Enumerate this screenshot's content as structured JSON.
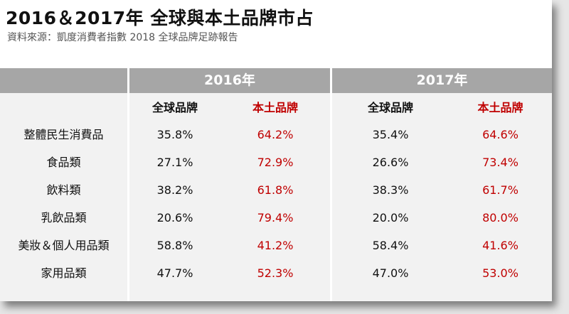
{
  "title": "2016＆2017年 全球與本土品牌市占",
  "source": "資料來源：凱度消費者指數 2018 全球品牌足跡報告",
  "years": [
    "2016年",
    "2017年"
  ],
  "subheaders": [
    "全球品牌",
    "本土品牌",
    "全球品牌",
    "本土品牌"
  ],
  "rows": [
    {
      "category": "整體民生消費品",
      "g2016": "35.8%",
      "l2016": "64.2%",
      "g2017": "35.4%",
      "l2017": "64.6%"
    },
    {
      "category": "食品類",
      "g2016": "27.1%",
      "l2016": "72.9%",
      "g2017": "26.6%",
      "l2017": "73.4%"
    },
    {
      "category": "飲料類",
      "g2016": "38.2%",
      "l2016": "61.8%",
      "g2017": "38.3%",
      "l2017": "61.7%"
    },
    {
      "category": "乳飲品類",
      "g2016": "20.6%",
      "l2016": "79.4%",
      "g2017": "20.0%",
      "l2017": "80.0%"
    },
    {
      "category": "美妝＆個人用品類",
      "g2016": "58.8%",
      "l2016": "41.2%",
      "g2017": "58.4%",
      "l2017": "41.6%"
    },
    {
      "category": "家用品類",
      "g2016": "47.7%",
      "l2016": "52.3%",
      "g2017": "47.0%",
      "l2017": "53.0%"
    }
  ],
  "colors": {
    "header_bg": "#a6a6a6",
    "body_bg": "#f2f2f2",
    "local_brand": "#c00000"
  }
}
